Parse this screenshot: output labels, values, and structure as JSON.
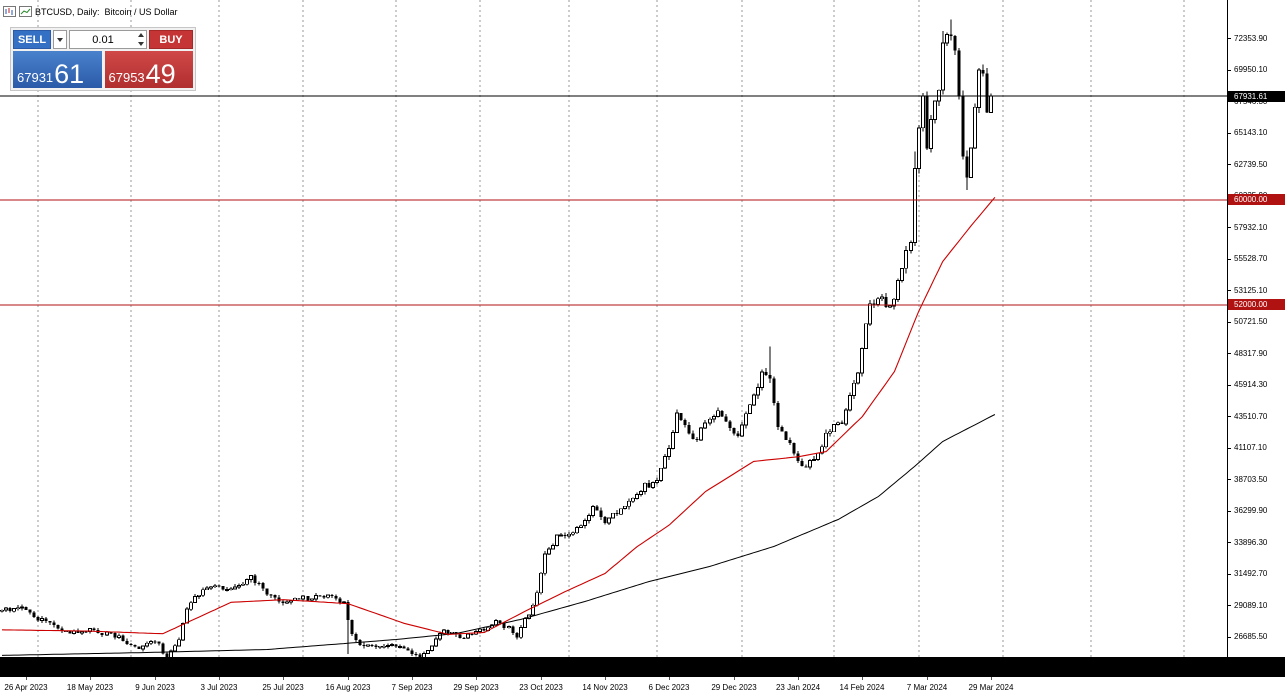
{
  "window": {
    "title": "BTCUSD, Daily:  Bitcoin / US Dollar"
  },
  "trade_panel": {
    "sell_label": "SELL",
    "buy_label": "BUY",
    "volume_value": "0.01",
    "bid_small": "67931",
    "bid_big": "61",
    "ask_small": "67953",
    "ask_big": "49"
  },
  "price_axis": {
    "labels": [
      "72353.90",
      "69950.10",
      "67546.30",
      "65143.10",
      "62739.50",
      "60335.90",
      "57932.10",
      "55528.70",
      "53125.10",
      "50721.50",
      "48317.90",
      "45914.30",
      "43510.70",
      "41107.10",
      "38703.50",
      "36299.90",
      "33896.30",
      "31492.70",
      "29089.10",
      "26685.50"
    ]
  },
  "time_axis": {
    "labels": [
      "26 Apr 2023",
      "18 May 2023",
      "9 Jun 2023",
      "3 Jul 2023",
      "25 Jul 2023",
      "16 Aug 2023",
      "7 Sep 2023",
      "29 Sep 2023",
      "23 Oct 2023",
      "14 Nov 2023",
      "6 Dec 2023",
      "29 Dec 2023",
      "23 Jan 2024",
      "14 Feb 2024",
      "7 Mar 2024",
      "29 Mar 2024"
    ],
    "label_bars": [
      6,
      22,
      38,
      54,
      70,
      86,
      102,
      118,
      134,
      150,
      166,
      182,
      198,
      214,
      230,
      246
    ]
  },
  "chart_data": {
    "type": "candlestick",
    "symbol": "BTCUSD",
    "timeframe": "Daily",
    "description": "Bitcoin / US Dollar",
    "bars_visible": 247,
    "current_price": 67931.61,
    "current_price_label": "67931.61",
    "bid": 67931.61,
    "ask": 67953.49,
    "horizontal_lines": [
      {
        "price": 60000.0,
        "label": "60000.00"
      },
      {
        "price": 52000.0,
        "label": "52000.00"
      }
    ],
    "close_path_anchors": [
      [
        0,
        28600
      ],
      [
        4,
        29000
      ],
      [
        8,
        28200
      ],
      [
        12,
        27700
      ],
      [
        16,
        27100
      ],
      [
        22,
        27100
      ],
      [
        28,
        26750
      ],
      [
        34,
        25800
      ],
      [
        38,
        26400
      ],
      [
        41,
        25150
      ],
      [
        44,
        26600
      ],
      [
        46,
        28900
      ],
      [
        50,
        30200
      ],
      [
        53,
        30400
      ],
      [
        57,
        30300
      ],
      [
        62,
        31200
      ],
      [
        66,
        30000
      ],
      [
        69,
        29200
      ],
      [
        75,
        29600
      ],
      [
        81,
        29750
      ],
      [
        85,
        29200
      ],
      [
        87,
        27000
      ],
      [
        89,
        26100
      ],
      [
        93,
        26050
      ],
      [
        98,
        25900
      ],
      [
        104,
        25150
      ],
      [
        107,
        25900
      ],
      [
        110,
        27200
      ],
      [
        114,
        26600
      ],
      [
        118,
        26950
      ],
      [
        123,
        27950
      ],
      [
        128,
        26800
      ],
      [
        131,
        28400
      ],
      [
        133,
        29900
      ],
      [
        135,
        33100
      ],
      [
        138,
        34200
      ],
      [
        141,
        34650
      ],
      [
        144,
        35100
      ],
      [
        147,
        36700
      ],
      [
        150,
        35550
      ],
      [
        153,
        36200
      ],
      [
        158,
        37750
      ],
      [
        163,
        38700
      ],
      [
        166,
        41300
      ],
      [
        168,
        43700
      ],
      [
        171,
        42000
      ],
      [
        173,
        41900
      ],
      [
        176,
        43300
      ],
      [
        178,
        43900
      ],
      [
        181,
        42800
      ],
      [
        183,
        42100
      ],
      [
        186,
        44200
      ],
      [
        189,
        46900
      ],
      [
        191,
        46100
      ],
      [
        193,
        42800
      ],
      [
        196,
        41500
      ],
      [
        199,
        39550
      ],
      [
        202,
        40100
      ],
      [
        206,
        42600
      ],
      [
        209,
        43100
      ],
      [
        213,
        47100
      ],
      [
        216,
        51800
      ],
      [
        219,
        52300
      ],
      [
        221,
        51700
      ],
      [
        224,
        54500
      ],
      [
        226,
        57100
      ],
      [
        227,
        62400
      ],
      [
        229,
        68300
      ],
      [
        230,
        63800
      ],
      [
        231,
        66100
      ],
      [
        233,
        68300
      ],
      [
        234,
        72100
      ],
      [
        236,
        73000
      ],
      [
        237,
        71400
      ],
      [
        238,
        67800
      ],
      [
        239,
        63500
      ],
      [
        240,
        61900
      ],
      [
        241,
        63700
      ],
      [
        242,
        67200
      ],
      [
        243,
        69900
      ],
      [
        244,
        69500
      ],
      [
        245,
        66800
      ],
      [
        246,
        67931.61
      ]
    ],
    "spikes": [
      {
        "bar": 41,
        "low": 24800
      },
      {
        "bar": 86,
        "low": 25350
      },
      {
        "bar": 191,
        "high": 48800
      },
      {
        "bar": 227,
        "high": 63700
      },
      {
        "bar": 234,
        "high": 72900
      },
      {
        "bar": 236,
        "high": 73750
      },
      {
        "bar": 240,
        "low": 60770
      }
    ],
    "ma_fast_anchors": [
      [
        0,
        27200
      ],
      [
        22,
        27100
      ],
      [
        40,
        26900
      ],
      [
        57,
        29300
      ],
      [
        70,
        29500
      ],
      [
        86,
        29200
      ],
      [
        100,
        27700
      ],
      [
        111,
        26850
      ],
      [
        120,
        27000
      ],
      [
        130,
        28600
      ],
      [
        140,
        30100
      ],
      [
        150,
        31500
      ],
      [
        158,
        33550
      ],
      [
        166,
        35200
      ],
      [
        175,
        37750
      ],
      [
        187,
        40050
      ],
      [
        198,
        40400
      ],
      [
        205,
        40800
      ],
      [
        214,
        43470
      ],
      [
        222,
        46900
      ],
      [
        228,
        51480
      ],
      [
        234,
        55300
      ],
      [
        241,
        58000
      ],
      [
        247,
        60200
      ]
    ],
    "ma_slow_anchors": [
      [
        0,
        25250
      ],
      [
        33,
        25450
      ],
      [
        66,
        25700
      ],
      [
        98,
        26460
      ],
      [
        113,
        26920
      ],
      [
        129,
        27990
      ],
      [
        145,
        29360
      ],
      [
        161,
        30890
      ],
      [
        176,
        32030
      ],
      [
        192,
        33560
      ],
      [
        208,
        35620
      ],
      [
        218,
        37370
      ],
      [
        227,
        39660
      ],
      [
        234,
        41570
      ],
      [
        247,
        43630
      ]
    ],
    "month_separator_bars": [
      9,
      32,
      54,
      75,
      98,
      119,
      141,
      163,
      184,
      207,
      228,
      249,
      271,
      294
    ],
    "colors": {
      "bull": "#ffffff",
      "bear": "#000000",
      "ma_fast": "#cc0000",
      "ma_slow": "#000000",
      "hline": "#b01212",
      "grid": "#999999",
      "current_line": "#000000"
    }
  }
}
